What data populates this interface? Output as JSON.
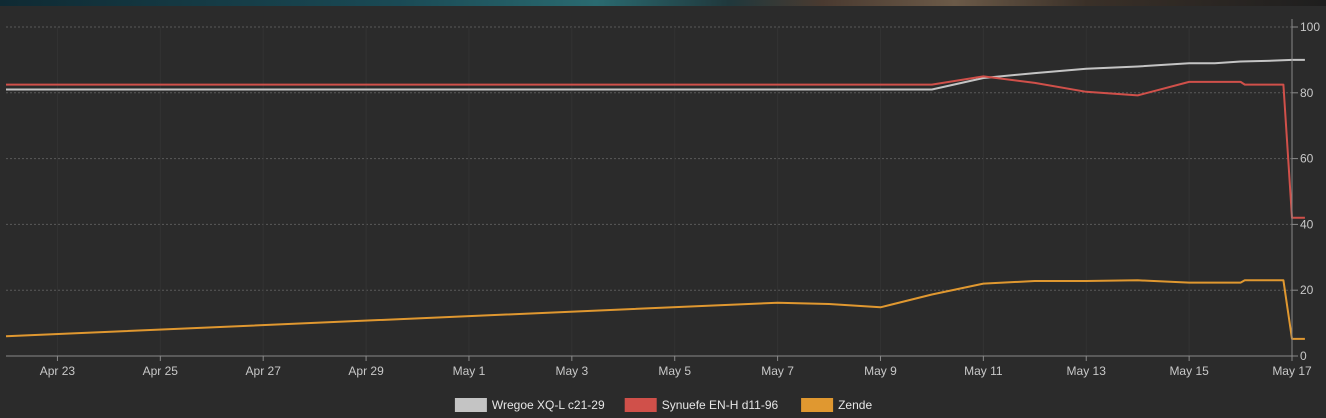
{
  "chart_data": {
    "type": "line",
    "x_type": "date",
    "x_tick_labels": [
      "Apr 23",
      "Apr 25",
      "Apr 27",
      "Apr 29",
      "May 1",
      "May 3",
      "May 5",
      "May 7",
      "May 9",
      "May 11",
      "May 13",
      "May 15",
      "May 17"
    ],
    "x_ticks": [
      "2024-04-23",
      "2024-04-25",
      "2024-04-27",
      "2024-04-29",
      "2024-05-01",
      "2024-05-03",
      "2024-05-05",
      "2024-05-07",
      "2024-05-09",
      "2024-05-11",
      "2024-05-13",
      "2024-05-15",
      "2024-05-17"
    ],
    "xlim": [
      "2024-04-22",
      "2024-05-17"
    ],
    "y_ticks": [
      0,
      20,
      40,
      60,
      80,
      100
    ],
    "ylim": [
      0,
      100
    ],
    "y_axis_position": "right",
    "grid": true,
    "legend_position": "bottom-center",
    "series": [
      {
        "name": "Wregoe XQ-L c21-29",
        "color": "#c4c4c4",
        "points": [
          [
            "2024-04-22",
            81
          ],
          [
            "2024-05-10",
            81
          ],
          [
            "2024-05-11",
            84.5
          ],
          [
            "2024-05-12",
            86
          ],
          [
            "2024-05-13",
            87.3
          ],
          [
            "2024-05-14",
            88
          ],
          [
            "2024-05-15",
            89
          ],
          [
            "2024-05-15T12:00",
            89
          ],
          [
            "2024-05-16",
            89.5
          ],
          [
            "2024-05-16T12:00",
            89.7
          ],
          [
            "2024-05-17",
            90
          ],
          [
            "2024-05-17T06:00",
            90
          ]
        ]
      },
      {
        "name": "Synuefe EN-H d11-96",
        "color": "#d0504a",
        "points": [
          [
            "2024-04-22",
            82.5
          ],
          [
            "2024-05-10",
            82.5
          ],
          [
            "2024-05-11",
            85
          ],
          [
            "2024-05-12",
            83
          ],
          [
            "2024-05-13",
            80.3
          ],
          [
            "2024-05-14",
            79.2
          ],
          [
            "2024-05-15",
            83.3
          ],
          [
            "2024-05-16",
            83.3
          ],
          [
            "2024-05-16T02:00",
            82.5
          ],
          [
            "2024-05-16T20:00",
            82.5
          ],
          [
            "2024-05-17",
            42
          ],
          [
            "2024-05-17T06:00",
            42
          ]
        ]
      },
      {
        "name": "Zende",
        "color": "#e09830",
        "points": [
          [
            "2024-04-22",
            6
          ],
          [
            "2024-05-07",
            16.2
          ],
          [
            "2024-05-08",
            15.8
          ],
          [
            "2024-05-09",
            14.8
          ],
          [
            "2024-05-10",
            18.7
          ],
          [
            "2024-05-11",
            22
          ],
          [
            "2024-05-12",
            22.8
          ],
          [
            "2024-05-13",
            22.8
          ],
          [
            "2024-05-14",
            23
          ],
          [
            "2024-05-15",
            22.3
          ],
          [
            "2024-05-16",
            22.3
          ],
          [
            "2024-05-16T02:00",
            23
          ],
          [
            "2024-05-16T20:00",
            23
          ],
          [
            "2024-05-17",
            5.2
          ],
          [
            "2024-05-17T06:00",
            5.2
          ]
        ]
      }
    ]
  },
  "colors": {
    "background": "#2b2b2b",
    "grid": "#5a5a5a",
    "axis": "#8a8a8a",
    "tick_text": "#c8c8c8"
  }
}
